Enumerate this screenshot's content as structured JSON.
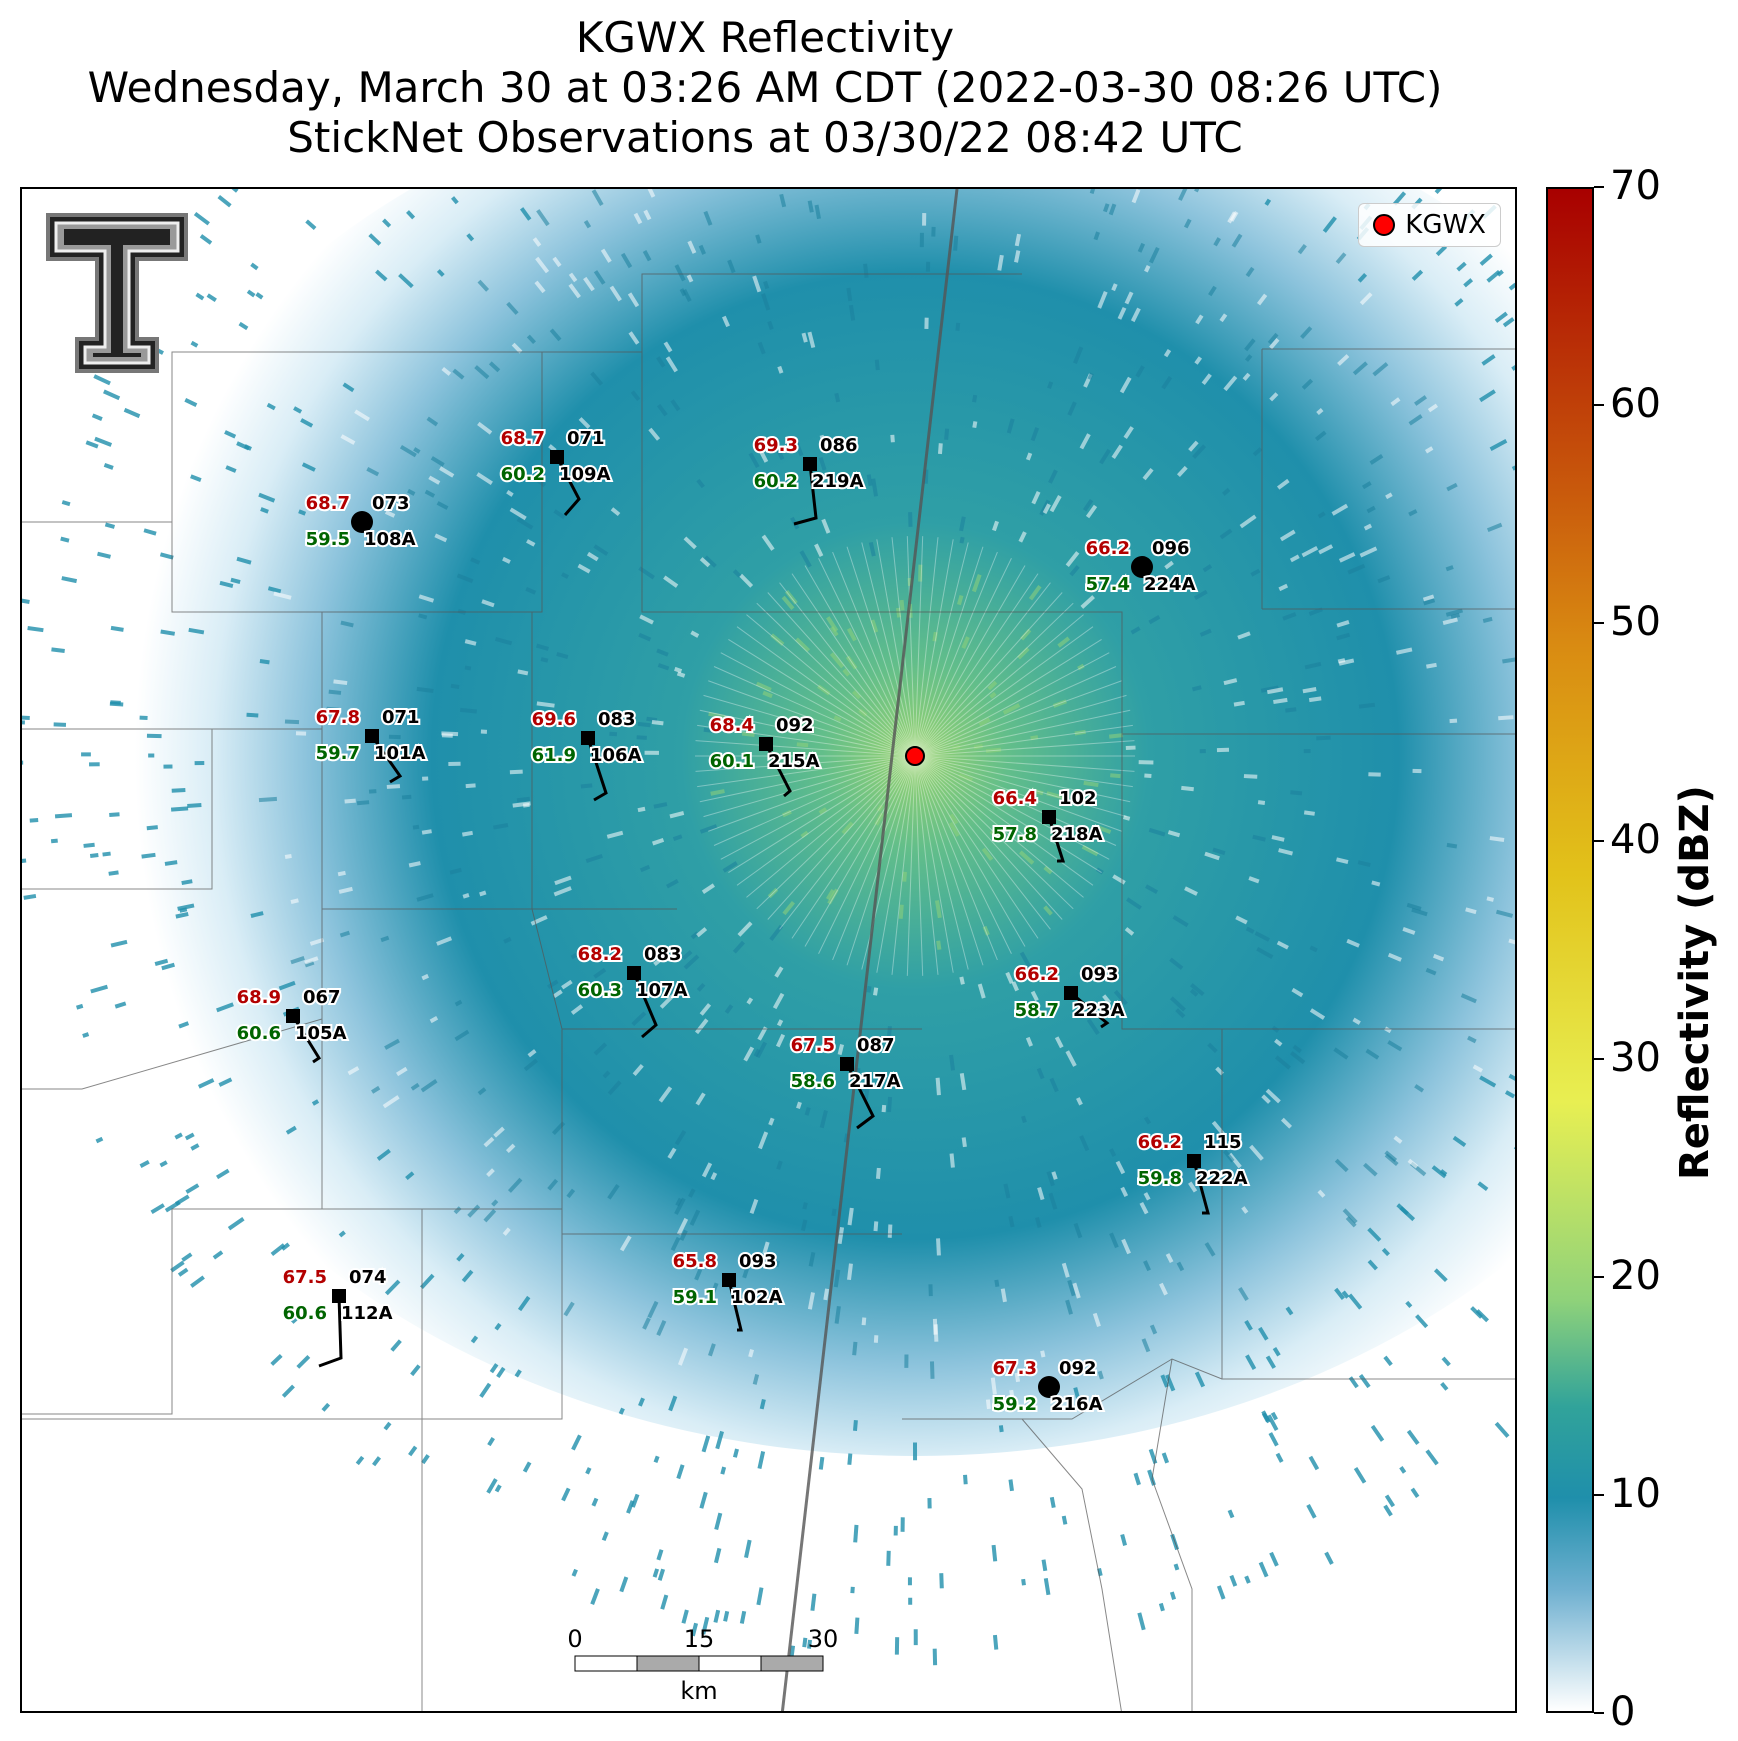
{
  "title": {
    "line1": "KGWX Reflectivity",
    "line2": "Wednesday, March 30 at 03:26 AM CDT (2022-03-30 08:26 UTC)",
    "line3": "StickNet Observations at 03/30/22 08:42 UTC"
  },
  "legend": {
    "label": "KGWX"
  },
  "colorbar": {
    "title": "Reflectivity (dBZ)",
    "ticks": [
      "0",
      "10",
      "20",
      "30",
      "40",
      "50",
      "60",
      "70"
    ]
  },
  "scalebar": {
    "ticks": [
      "0",
      "15",
      "30"
    ],
    "unit": "km"
  },
  "colors": {
    "temp": "#b30000",
    "dewpoint": "#006400",
    "radar": "#ff0000",
    "echo": "#1f8fab"
  },
  "stations": [
    {
      "id": "073",
      "name": "108A",
      "temp": "68.7",
      "dew": "59.5",
      "marker": "circle"
    },
    {
      "id": "071",
      "name": "109A",
      "temp": "68.7",
      "dew": "60.2",
      "marker": "square"
    },
    {
      "id": "086",
      "name": "219A",
      "temp": "69.3",
      "dew": "60.2",
      "marker": "square"
    },
    {
      "id": "096",
      "name": "224A",
      "temp": "66.2",
      "dew": "57.4",
      "marker": "circle"
    },
    {
      "id": "071",
      "name": "101A",
      "temp": "67.8",
      "dew": "59.7",
      "marker": "square"
    },
    {
      "id": "083",
      "name": "106A",
      "temp": "69.6",
      "dew": "61.9",
      "marker": "square"
    },
    {
      "id": "092",
      "name": "215A",
      "temp": "68.4",
      "dew": "60.1",
      "marker": "square"
    },
    {
      "id": "102",
      "name": "218A",
      "temp": "66.4",
      "dew": "57.8",
      "marker": "square"
    },
    {
      "id": "083",
      "name": "107A",
      "temp": "68.2",
      "dew": "60.3",
      "marker": "square"
    },
    {
      "id": "093",
      "name": "223A",
      "temp": "66.2",
      "dew": "58.7",
      "marker": "square"
    },
    {
      "id": "067",
      "name": "105A",
      "temp": "68.9",
      "dew": "60.6",
      "marker": "square"
    },
    {
      "id": "087",
      "name": "217A",
      "temp": "67.5",
      "dew": "58.6",
      "marker": "square"
    },
    {
      "id": "115",
      "name": "222A",
      "temp": "66.2",
      "dew": "59.8",
      "marker": "square"
    },
    {
      "id": "093",
      "name": "102A",
      "temp": "65.8",
      "dew": "59.1",
      "marker": "square"
    },
    {
      "id": "074",
      "name": "112A",
      "temp": "67.5",
      "dew": "60.6",
      "marker": "square"
    },
    {
      "id": "092",
      "name": "216A",
      "temp": "67.3",
      "dew": "59.2",
      "marker": "circle"
    }
  ]
}
